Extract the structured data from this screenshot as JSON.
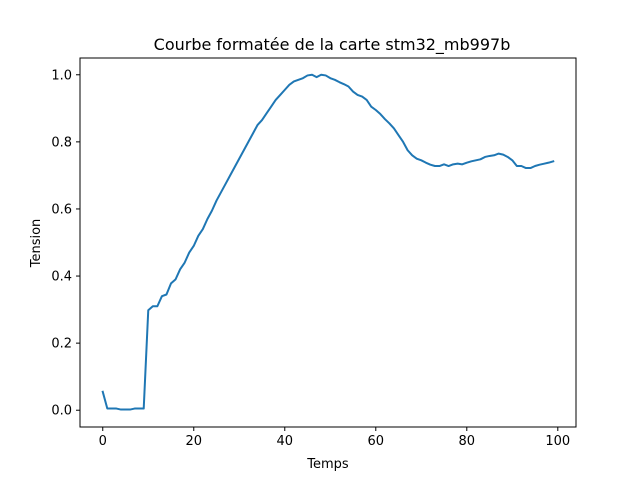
{
  "chart_data": {
    "type": "line",
    "title": "Courbe formatée de la carte stm32_mb997b",
    "xlabel": "Temps",
    "ylabel": "Tension",
    "xlim": [
      -5,
      104
    ],
    "ylim": [
      -0.05,
      1.05
    ],
    "xticks": [
      0,
      20,
      40,
      60,
      80,
      100
    ],
    "xtick_labels": [
      "0",
      "20",
      "40",
      "60",
      "80",
      "100"
    ],
    "yticks": [
      0.0,
      0.2,
      0.4,
      0.6,
      0.8,
      1.0
    ],
    "ytick_labels": [
      "0.0",
      "0.2",
      "0.4",
      "0.6",
      "0.8",
      "1.0"
    ],
    "grid": false,
    "color": "#1f77b4",
    "series": [
      {
        "x": [
          0,
          1,
          2,
          3,
          4,
          5,
          6,
          7,
          8,
          9,
          10,
          11,
          12,
          13,
          14,
          15,
          16,
          17,
          18,
          19,
          20,
          21,
          22,
          23,
          24,
          25,
          26,
          27,
          28,
          29,
          30,
          31,
          32,
          33,
          34,
          35,
          36,
          37,
          38,
          39,
          40,
          41,
          42,
          43,
          44,
          45,
          46,
          47,
          48,
          49,
          50,
          51,
          52,
          53,
          54,
          55,
          56,
          57,
          58,
          59,
          60,
          61,
          62,
          63,
          64,
          65,
          66,
          67,
          68,
          69,
          70,
          71,
          72,
          73,
          74,
          75,
          76,
          77,
          78,
          79,
          80,
          81,
          82,
          83,
          84,
          85,
          86,
          87,
          88,
          89,
          90,
          91,
          92,
          93,
          94,
          95,
          96,
          97,
          98,
          99
        ],
        "values": [
          0.055,
          0.005,
          0.005,
          0.005,
          0.002,
          0.002,
          0.002,
          0.005,
          0.005,
          0.005,
          0.298,
          0.31,
          0.31,
          0.34,
          0.345,
          0.378,
          0.39,
          0.42,
          0.44,
          0.47,
          0.49,
          0.52,
          0.54,
          0.57,
          0.595,
          0.625,
          0.65,
          0.675,
          0.7,
          0.725,
          0.75,
          0.775,
          0.8,
          0.825,
          0.85,
          0.865,
          0.885,
          0.905,
          0.925,
          0.94,
          0.955,
          0.97,
          0.98,
          0.985,
          0.99,
          0.998,
          1.0,
          0.993,
          1.0,
          0.998,
          0.99,
          0.985,
          0.978,
          0.972,
          0.965,
          0.95,
          0.94,
          0.935,
          0.925,
          0.905,
          0.895,
          0.883,
          0.868,
          0.855,
          0.84,
          0.82,
          0.8,
          0.775,
          0.76,
          0.75,
          0.745,
          0.738,
          0.732,
          0.728,
          0.728,
          0.733,
          0.728,
          0.733,
          0.735,
          0.733,
          0.738,
          0.742,
          0.745,
          0.748,
          0.755,
          0.758,
          0.76,
          0.765,
          0.762,
          0.755,
          0.745,
          0.728,
          0.728,
          0.722,
          0.722,
          0.728,
          0.732,
          0.735,
          0.738,
          0.742
        ]
      }
    ]
  }
}
